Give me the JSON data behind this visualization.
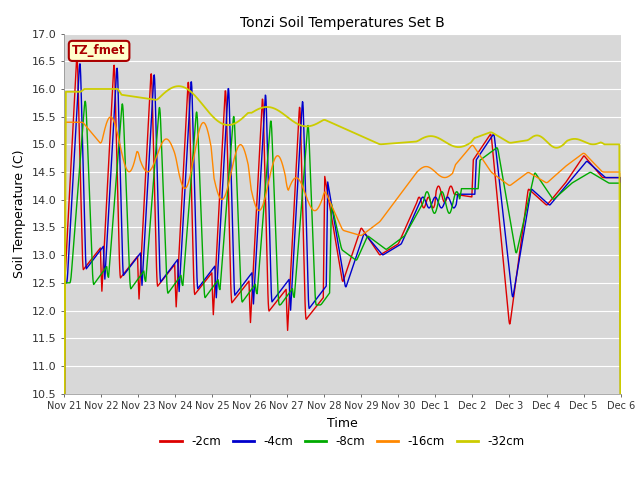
{
  "title": "Tonzi Soil Temperatures Set B",
  "xlabel": "Time",
  "ylabel": "Soil Temperature (C)",
  "ylim": [
    10.5,
    17.0
  ],
  "yticks": [
    10.5,
    11.0,
    11.5,
    12.0,
    12.5,
    13.0,
    13.5,
    14.0,
    14.5,
    15.0,
    15.5,
    16.0,
    16.5,
    17.0
  ],
  "fig_bg": "#ffffff",
  "plot_bg": "#d8d8d8",
  "grid_color": "#ffffff",
  "legend_label": "TZ_fmet",
  "legend_box_facecolor": "#ffffcc",
  "legend_box_edgecolor": "#aa0000",
  "series": {
    "-2cm": {
      "color": "#dd0000",
      "lw": 1.0
    },
    "-4cm": {
      "color": "#0000cc",
      "lw": 1.0
    },
    "-8cm": {
      "color": "#00aa00",
      "lw": 1.0
    },
    "-16cm": {
      "color": "#ff8800",
      "lw": 1.0
    },
    "-32cm": {
      "color": "#cccc00",
      "lw": 1.3
    }
  },
  "xtick_labels": [
    "Nov 21",
    "Nov 22",
    "Nov 23",
    "Nov 24",
    "Nov 25",
    "Nov 26",
    "Nov 27",
    "Nov 28",
    "Nov 29",
    "Nov 30",
    "Dec 1",
    "Dec 2",
    "Dec 3",
    "Dec 4",
    "Dec 5",
    "Dec 6"
  ]
}
